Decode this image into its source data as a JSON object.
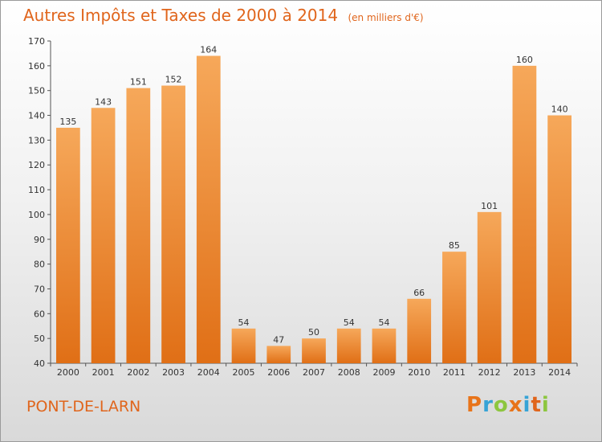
{
  "chart_data": {
    "type": "bar",
    "title": "Autres Impôts et Taxes de 2000 à 2014",
    "unit": "(en milliers d'€)",
    "categories": [
      "2000",
      "2001",
      "2002",
      "2003",
      "2004",
      "2005",
      "2006",
      "2007",
      "2008",
      "2009",
      "2010",
      "2011",
      "2012",
      "2013",
      "2014"
    ],
    "values": [
      135,
      143,
      151,
      152,
      164,
      54,
      47,
      50,
      54,
      54,
      66,
      85,
      101,
      160,
      140
    ],
    "ylim": [
      40,
      170
    ],
    "yticks": [
      40,
      50,
      60,
      70,
      80,
      90,
      100,
      110,
      120,
      130,
      140,
      150,
      160,
      170
    ],
    "grid": false,
    "bar_color": "#f0892e",
    "bar_color_top": "#f6a85a",
    "bar_color_bottom": "#e06f16"
  },
  "footer": {
    "commune": "PONT-DE-LARN",
    "logo": "Proxiti"
  }
}
